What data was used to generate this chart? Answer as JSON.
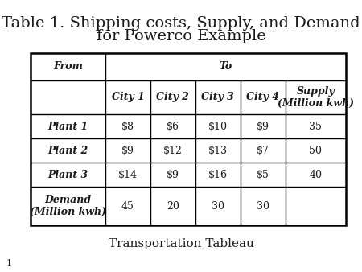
{
  "title_line1": "Table 1. Shipping costs, Supply, and Demand",
  "title_line2": "for Powerco Example",
  "title_fontsize": 14,
  "footer": "Transportation Tableau",
  "footer_fontsize": 11,
  "page_number": "1",
  "background_color": "#ffffff",
  "header_row2": [
    "City 1",
    "City 2",
    "City 3",
    "City 4",
    "Supply\n(Million kwh)"
  ],
  "data_rows": [
    [
      "Plant 1",
      "$8",
      "$6",
      "$10",
      "$9",
      "35"
    ],
    [
      "Plant 2",
      "$9",
      "$12",
      "$13",
      "$7",
      "50"
    ],
    [
      "Plant 3",
      "$14",
      "$9",
      "$16",
      "$5",
      "40"
    ],
    [
      "Demand\n(Million kwh)",
      "45",
      "20",
      "30",
      "30",
      ""
    ]
  ],
  "header_fontsize": 9,
  "cell_fontsize": 9
}
